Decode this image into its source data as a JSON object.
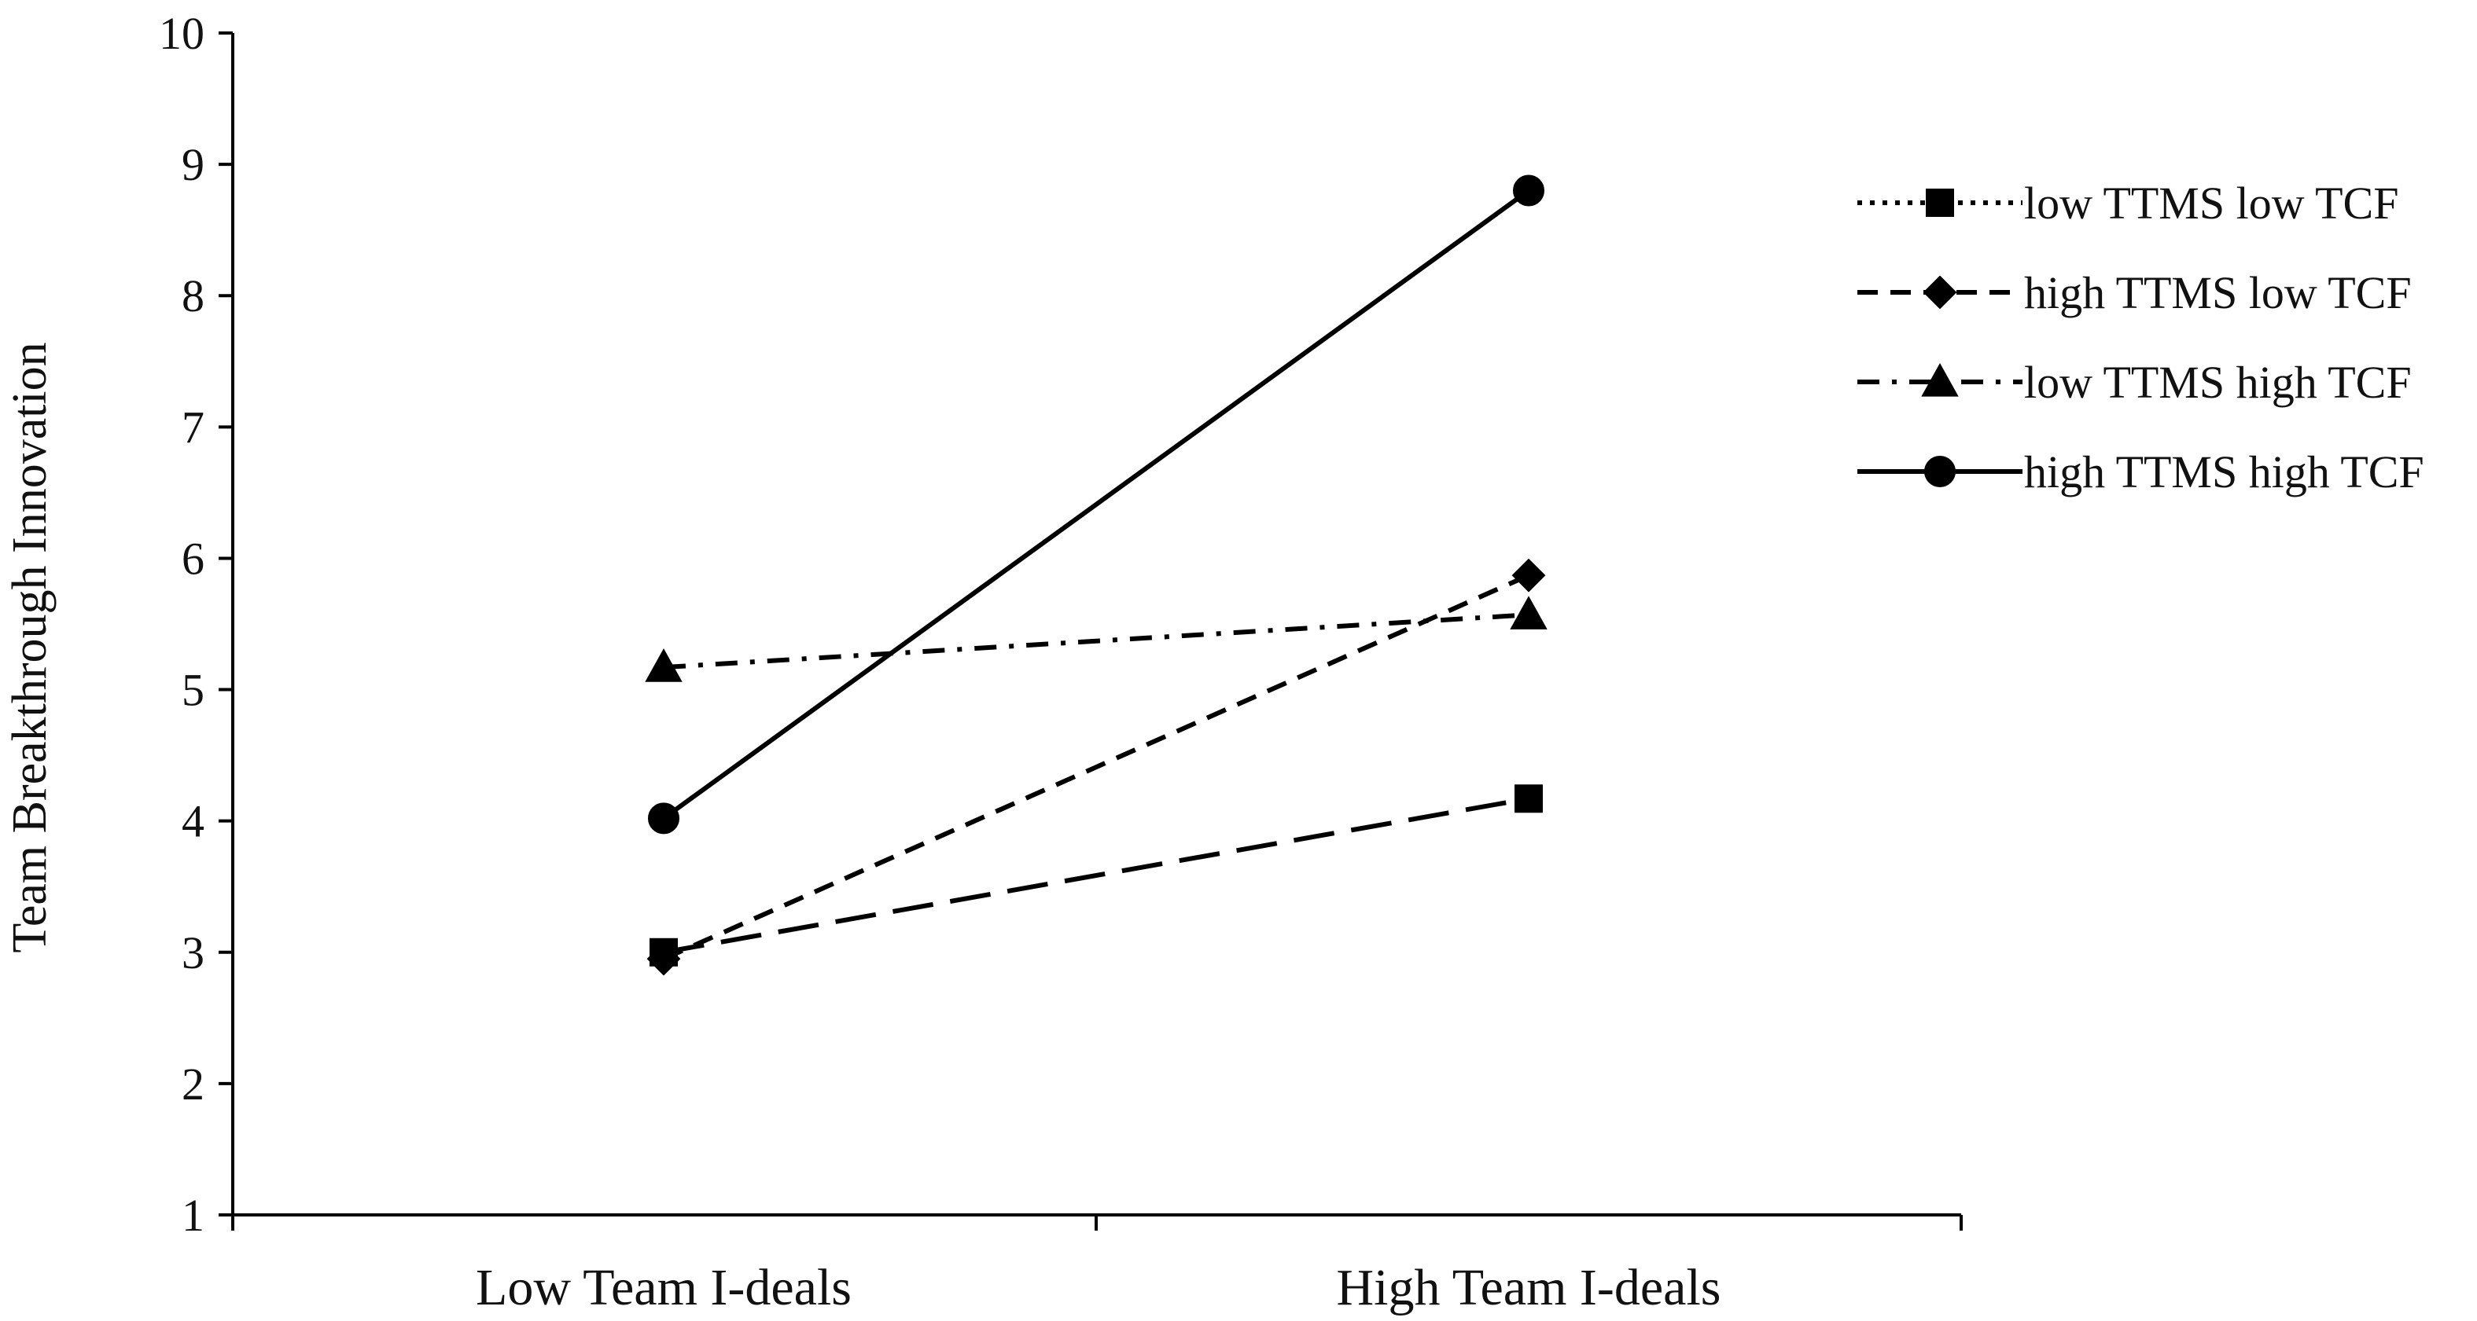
{
  "chart_data": {
    "type": "line",
    "title": "",
    "xlabel": "",
    "ylabel": "Team Breakthrough Innovation",
    "categories": [
      "Low Team I-deals",
      "High Team I-deals"
    ],
    "ylim": [
      1,
      10
    ],
    "yticks": [
      "1",
      "2",
      "3",
      "4",
      "5",
      "6",
      "7",
      "8",
      "9",
      "10"
    ],
    "grid": false,
    "legend_position": "right",
    "series": [
      {
        "name": "low TTMS low TCF",
        "values": [
          3.0,
          4.17
        ],
        "marker": "square",
        "line_style": "long-dash",
        "legend_line_style": "dotted"
      },
      {
        "name": "high TTMS low TCF",
        "values": [
          2.95,
          5.87
        ],
        "marker": "diamond",
        "line_style": "dashed",
        "legend_line_style": "dashed"
      },
      {
        "name": "low TTMS high TCF",
        "values": [
          5.17,
          5.57
        ],
        "marker": "triangle",
        "line_style": "dash-dot",
        "legend_line_style": "dash-dot"
      },
      {
        "name": "high TTMS high TCF",
        "values": [
          4.02,
          8.8
        ],
        "marker": "circle",
        "line_style": "solid",
        "legend_line_style": "solid"
      }
    ],
    "colors": {
      "line": "#000000",
      "text": "#111111",
      "background": "#ffffff"
    }
  }
}
